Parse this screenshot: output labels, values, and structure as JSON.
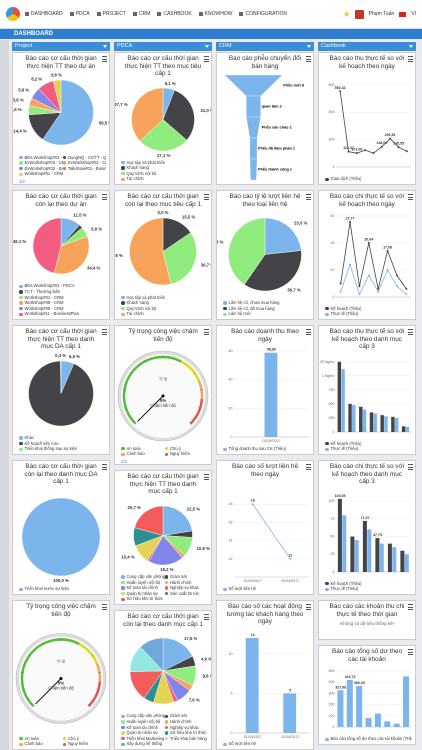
{
  "nav": [
    "DASHBOARD",
    "PDCA",
    "PROJECT",
    "CRM",
    "CASHBOOK",
    "KNOWHOW",
    "CONFIGURATION"
  ],
  "user": {
    "name": "Phạm Tuấn",
    "language": "VI"
  },
  "page_title": "DASHBOARD",
  "palette": [
    "#7cb5ec",
    "#434348",
    "#90ed7d",
    "#f7a35c",
    "#8085e9",
    "#f15c80",
    "#e4d354",
    "#2b908f",
    "#f45b5b",
    "#91e8e1",
    "#6fa8dc"
  ],
  "columns": [
    {
      "title": "Project",
      "panels": [
        {
          "title": "Báo cáo cơ cấu thời gian thực hiện TT theo dự án",
          "pager": "1/2",
          "chart_data": {
            "type": "pie",
            "categories": [
              "BDs.Workshop#02 - PDCA",
              "DungNQ - CGTT - QTDA - 02",
              "ExWorkshop#03 - CRM",
              "ExWorkshop#02 - CRM",
              "ExWorkshop#02 - BusinessPlan",
              "Talkshow#01 - BusinessPlan",
              "Workshop#01 - CRM"
            ],
            "values": [
              59.5,
              14.4,
              4.5,
              3.8,
              5.8,
              8.2,
              3.8
            ],
            "value_labels": [
              "59,5 %",
              "14,4 %",
              "4,5 %",
              "3,8 %",
              "5,8 %",
              "8,2 %",
              "3,8 %"
            ]
          }
        },
        {
          "title": "Báo cáo cơ cấu thời gian còn lại theo dự án",
          "chart_data": {
            "type": "pie",
            "categories": [
              "BDs.Workshop#02 - PDCA",
              "TCT - Thường kiến",
              "Workshop#01 - CRM",
              "Workshop#09 - CRM",
              "Workshop#09 - CRM",
              "Workshop#11 - BusinessPlan"
            ],
            "values": [
              11.5,
              2.1,
              5.9,
              34.4,
              0.0,
              46.1
            ],
            "value_labels": [
              "11,5 %",
              null,
              "5,9 %",
              "34,4 %",
              null,
              "46,1 %"
            ]
          }
        },
        {
          "title": "Báo cáo cơ cấu thời gian thực hiện TT theo danh mục DA cấp 1",
          "chart_data": {
            "type": "pie",
            "categories": [
              "Khác",
              "Kế hoạch tiền cứu",
              "Triển khai thống sau sự kiện"
            ],
            "values": [
              6.5,
              93.2,
              0.3
            ],
            "value_labels": [
              "6,5 %",
              null,
              "0,3 %"
            ]
          }
        },
        {
          "title": "Báo cáo cơ cấu thời gian còn lại theo danh mục DA cấp 1",
          "chart_data": {
            "type": "pie",
            "categories": [
              "Triển khai trước sự kiện"
            ],
            "values": [
              100.0
            ],
            "value_labels": [
              "100,0 %"
            ]
          }
        },
        {
          "title": "Tỷ trọng công việc chậm tiến độ",
          "chart_data": {
            "type": "gauge",
            "unit_label": "Tỉ lệ",
            "value": 0,
            "value_label": "0%",
            "label": "Chậm tiến độ",
            "ylim": [
              0,
              100
            ],
            "bands": [
              {
                "name": "An toàn",
                "color": "#55bf3b",
                "from": 0,
                "to": 60
              },
              {
                "name": "Chú ý",
                "color": "#dddf0d",
                "from": 60,
                "to": 75
              },
              {
                "name": "Cảnh báo",
                "color": "#f7a35c",
                "from": 75,
                "to": 85
              },
              {
                "name": "Nguy hiểm",
                "color": "#df5353",
                "from": 85,
                "to": 100
              }
            ]
          }
        }
      ]
    },
    {
      "title": "PDCA",
      "panels": [
        {
          "title": "Báo cáo cơ cấu thời gian thực hiện TT theo mục tiêu cấp 1",
          "chart_data": {
            "type": "pie",
            "categories": [
              "Học tập và phát triển",
              "Khách hàng",
              "Quy trình nội bộ",
              "Tài chính"
            ],
            "values": [
              6.1,
              31.0,
              27.1,
              37.7
            ],
            "value_labels": [
              "6,1 %",
              "31,0 %",
              "27,1 %",
              "37,7 %"
            ]
          }
        },
        {
          "title": "Báo cáo cơ cấu thời gian còn lại theo mục tiêu cấp 1",
          "chart_data": {
            "type": "pie",
            "categories": [
              "Học tập và phát triển",
              "Khách hàng",
              "Quy trình nội bộ",
              "Tài chính"
            ],
            "values": [
              0.0,
              15.5,
              30.7,
              53.8
            ],
            "value_labels": [
              "0,0 %",
              "15,5 %",
              "30,7 %",
              "53,8 %"
            ]
          }
        },
        {
          "title": "Tỷ trọng công việc chậm tiến độ",
          "pager": "1/2",
          "chart_data": {
            "type": "gauge",
            "unit_label": "Tỉ lệ",
            "value": 0,
            "value_label": "0%",
            "label": "Chậm tiến độ",
            "ylim": [
              0,
              100
            ],
            "bands": [
              {
                "name": "An toàn",
                "color": "#55bf3b",
                "from": 0,
                "to": 60
              },
              {
                "name": "Chú ý",
                "color": "#dddf0d",
                "from": 60,
                "to": 75
              },
              {
                "name": "Cảnh báo",
                "color": "#f7a35c",
                "from": 75,
                "to": 85
              },
              {
                "name": "Nguy hiểm",
                "color": "#df5353",
                "from": 85,
                "to": 100
              }
            ]
          }
        },
        {
          "title": "Báo cáo cơ cấu thời gian thực hiện TT theo danh mục cấp 1",
          "chart_data": {
            "type": "pie",
            "categories": [
              "Cung cấp văn phòng",
              "Giám sát",
              "Huấn luyện nội bộ",
              "Hành chính",
              "Kế toán tài chính",
              "Nghiệp vụ khác",
              "Quản trị nhân sự",
              "Sản xuất tin tức",
              "Sở hữu kho trí thức"
            ],
            "values": [
              22.5,
              3.6,
              10.6,
              2.0,
              19.2,
              1.0,
              10.4,
              10.0,
              20.7
            ],
            "value_labels": [
              "22,5 %",
              null,
              "10,6 %",
              null,
              "19,2 %",
              null,
              "10,4 %",
              null,
              "20,7 %"
            ]
          }
        },
        {
          "title": "Báo cáo cơ cấu thời gian còn lại theo danh mục cấp 1",
          "chart_data": {
            "type": "pie",
            "categories": [
              "Cung cấp văn phòng",
              "Giám sát",
              "Huấn luyện nội bộ",
              "Hành chính",
              "Kế toán tài chính",
              "Nghiệp vụ khác",
              "Quản trị nhân sự",
              "Sở hữu kho trí thức",
              "Triển khai Marketing",
              "Triển khai bán hàng",
              "Xây dựng hệ thống"
            ],
            "values": [
              17.6,
              4.9,
              9.6,
              3.0,
              7.6,
              2.0,
              10.0,
              5.0,
              15.0,
              13.3,
              12.0
            ],
            "value_labels": [
              "17,6 %",
              "4,9 %",
              "9,6 %",
              null,
              "7,6 %",
              null,
              null,
              null,
              null,
              null,
              null
            ]
          }
        }
      ]
    },
    {
      "title": "CRM",
      "panels": [
        {
          "title": "Báo cáo phễu chuyển đổi bán hàng",
          "chart_data": {
            "type": "funnel",
            "categories": [
              "Phễu mới",
              "quan tâm",
              "Phễu cần chào",
              "Phễu đã đàm phán",
              "Phễu thành công"
            ],
            "values": [
              8,
              2,
              2,
              1,
              1
            ],
            "color": "#7cb5ec"
          }
        },
        {
          "title": "Báo cáo tỷ lệ lượt liên hệ theo loại liên hệ",
          "chart_data": {
            "type": "pie",
            "categories": [
              "Liên hệ cũ, chưa mua hàng",
              "Liên hệ cũ, đã mua hàng",
              "Liên hệ mới"
            ],
            "values": [
              23.5,
              36.7,
              40.8
            ],
            "value_labels": [
              "23,5 %",
              "36,7 %",
              "40,8 %"
            ]
          }
        },
        {
          "title": "Báo cáo doanh thu theo ngày",
          "chart_data": {
            "type": "bar",
            "categories": [
              "02/04/2017"
            ],
            "ylim": [
              0,
              60
            ],
            "yticks": [
              0,
              20,
              40,
              60
            ],
            "series": [
              {
                "name": "Tổng doanh thu sau CK (Triệu)",
                "color": "#7cb5ec",
                "values": [
                  58.8
                ],
                "value_labels": [
                  "58,80"
                ]
              }
            ]
          }
        },
        {
          "title": "Báo cáo số lượt liên hệ theo ngày",
          "chart_data": {
            "type": "line",
            "categories": [
              "01/04/2017",
              "02/04/2017"
            ],
            "ylim": [
              10,
              20
            ],
            "yticks": [
              12,
              14,
              16,
              18
            ],
            "series": [
              {
                "name": "Số lượt liên hệ",
                "color": "#7cb5ec",
                "values": [
                  18,
                  12
                ],
                "value_labels": [
                  "18",
                  "12"
                ]
              }
            ]
          }
        },
        {
          "title": "Báo cáo số các hoạt động tương tác khách hàng theo ngày",
          "chart_data": {
            "type": "bar",
            "categories": [
              "01/04/2017",
              "02/04/2017"
            ],
            "ylim": [
              0,
              12.5
            ],
            "yticks": [
              0,
              5,
              10
            ],
            "series": [
              {
                "name": "Số lượt liên hệ",
                "color": "#7cb5ec",
                "values": [
                  12,
                  5
                ],
                "value_labels": [
                  "12",
                  "5"
                ]
              }
            ]
          }
        }
      ]
    },
    {
      "title": "Cashbook",
      "panels": [
        {
          "title": "Báo cáo thu thực tế so với kế hoạch theo ngày",
          "chart_data": {
            "type": "line",
            "categories": [
              null,
              null,
              null,
              null,
              null,
              null,
              null,
              null,
              null
            ],
            "ylim": [
              0,
              650
            ],
            "yticks": [
              0,
              200,
              400,
              600
            ],
            "series": [
              {
                "name": "Giao dịch (Triệu)",
                "color": "#434348",
                "values": [
                  552.42,
                  112.37,
                  101.0,
                  123.0,
                  101.04,
                  148.0,
                  206.81,
                  145.55,
                  115.0
                ],
                "value_labels": [
                  "552,42",
                  "112,37",
                  "101,00",
                  null,
                  null,
                  "148,00",
                  "206,81",
                  "145,55",
                  null
                ]
              }
            ]
          }
        },
        {
          "title": "Báo cáo chi thực tế so với kế hoạch theo ngày",
          "chart_data": {
            "type": "line",
            "categories": [
              null,
              null,
              null,
              null,
              null,
              null,
              null,
              null
            ],
            "ylim": [
              0,
              30
            ],
            "yticks": [
              0,
              10,
              20,
              30
            ],
            "series": [
              {
                "name": "Kế hoạch (Triệu)",
                "color": "#434348",
                "values": [
                  5,
                  27.77,
                  4,
                  20.04,
                  3,
                  17.08,
                  8,
                  3
                ],
                "value_labels": [
                  null,
                  "27,77",
                  null,
                  "20,04",
                  null,
                  "17,08",
                  null,
                  null
                ]
              },
              {
                "name": "Thực tế (Triệu)",
                "color": "#7cb5ec",
                "values": [
                  2,
                  12,
                  1,
                  8,
                  2,
                  10,
                  4,
                  1
                ]
              }
            ]
          }
        },
        {
          "title": "Báo cáo thu thực tế so với kế hoạch theo danh mục cấp 3",
          "chart_data": {
            "type": "bar",
            "categories": [
              null,
              null,
              null,
              null,
              null,
              null,
              null
            ],
            "ylim": [
              0,
              1300
            ],
            "yticks": [
              0,
              250,
              500,
              750,
              {
                "value": 1000,
                "label": "1 Nghìn"
              },
              {
                "value": 1250,
                "label": "1,25 Nghìn"
              }
            ],
            "series": [
              {
                "name": "Kế hoạch (Triệu)",
                "color": "#434348",
                "values": [
                  1250,
                  500,
                  450,
                  350,
                  300,
                  270,
                  100
                ]
              },
              {
                "name": "Thực tế (Triệu)",
                "color": "#7cb5ec",
                "values": [
                  1120,
                  480,
                  400,
                  330,
                  280,
                  250,
                  90
                ]
              }
            ]
          }
        },
        {
          "title": "Báo cáo chi thực tế so với kế hoạch theo danh mục cấp 3",
          "chart_data": {
            "type": "bar",
            "categories": [
              null,
              null,
              null,
              null,
              null,
              null
            ],
            "ylim": [
              0,
              110
            ],
            "yticks": [
              0,
              25,
              50,
              75,
              100
            ],
            "series": [
              {
                "name": "Kế hoạch (Triệu)",
                "color": "#434348",
                "values": [
                  103.05,
                  50,
                  71.97,
                  47.79,
                  40,
                  30
                ],
                "value_labels": [
                  "103,05",
                  null,
                  "71,97",
                  "47,79",
                  null,
                  null
                ]
              },
              {
                "name": "Thực tế (Triệu)",
                "color": "#7cb5ec",
                "values": [
                  80,
                  45,
                  60,
                  40,
                  35,
                  25
                ]
              }
            ]
          }
        },
        {
          "title": "Báo cáo các khoản thu chi thực tế theo thời gian",
          "chart_data": {
            "type": "empty",
            "message": "Không có dữ liệu thống kê!"
          }
        },
        {
          "title": "Báo cáo tổng số dư theo các tài khoản",
          "chart_data": {
            "type": "bar",
            "categories": [
              null,
              null,
              null,
              null,
              null,
              null,
              null,
              null
            ],
            "ylim": [
              0,
              500
            ],
            "yticks": [
              0,
              100,
              200,
              300,
              400,
              500
            ],
            "series": [
              {
                "name": "Báo cáo tổng số dư theo các tài khoản (Triệu)",
                "color": "#7cb5ec",
                "values": [
                  327.98,
                  419.72,
                  366.23,
                  80,
                  120,
                  50,
                  30,
                  452.0
                ],
                "value_labels": [
                  "327,98",
                  "419,72",
                  "366,23",
                  null,
                  null,
                  null,
                  null,
                  null
                ]
              }
            ]
          }
        }
      ]
    }
  ]
}
